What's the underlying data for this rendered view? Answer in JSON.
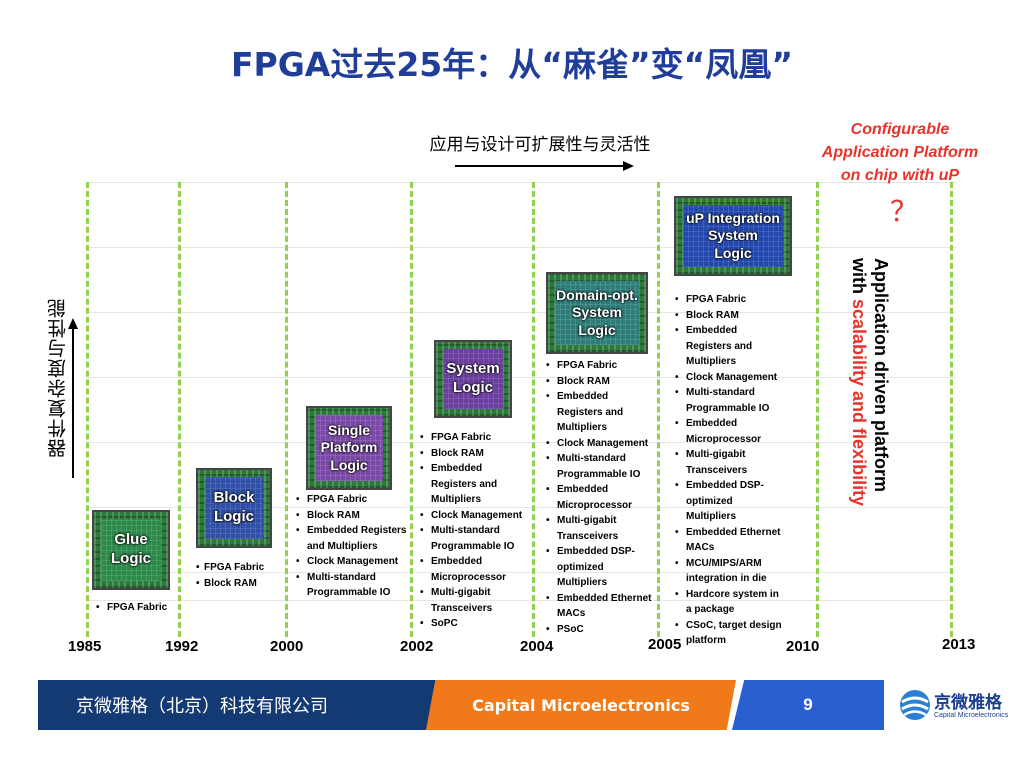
{
  "slide": {
    "title": "FPGA过去25年：从“麻雀”变“凤凰”",
    "top_caption": "应用与设计可扩展性与灵活性",
    "y_axis_label": "器件复杂度与性能",
    "platform_label": [
      "Configurable",
      "Application Platform",
      "on chip with uP"
    ],
    "question_mark": "？",
    "vertical_text_black": "Application driven platform",
    "vertical_text_with": "with ",
    "vertical_text_red": "scalability and flexibility"
  },
  "years": [
    "1985",
    "1992",
    "2000",
    "2002",
    "2004",
    "2005",
    "2010",
    "2013"
  ],
  "chips": [
    {
      "label_lines": [
        "Glue",
        "Logic"
      ],
      "color": "#2c7a3a"
    },
    {
      "label_lines": [
        "Block",
        "Logic"
      ],
      "color": "#2f4fa8"
    },
    {
      "label_lines": [
        "Single",
        "Platform",
        "Logic"
      ],
      "color": "#7b4aa8"
    },
    {
      "label_lines": [
        "System",
        "Logic"
      ],
      "color": "#6b3fa0"
    },
    {
      "label_lines": [
        "Domain-opt.",
        "System",
        "Logic"
      ],
      "color": "#2e7d7a"
    },
    {
      "label_lines": [
        "uP Integration",
        "System",
        "Logic"
      ],
      "color": "#2348b0"
    }
  ],
  "features": [
    [
      "FPGA Fabric"
    ],
    [
      "FPGA Fabric",
      "Block RAM"
    ],
    [
      "FPGA Fabric",
      "Block RAM",
      "Embedded Registers",
      "and Multipliers",
      "Clock Management",
      "Multi-standard",
      "Programmable IO"
    ],
    [
      "FPGA Fabric",
      "Block RAM",
      "Embedded",
      "Registers and",
      "Multipliers",
      "Clock Management",
      "Multi-standard",
      "Programmable IO",
      "Embedded",
      "Microprocessor",
      "Multi-gigabit",
      "Transceivers",
      "SoPC"
    ],
    [
      "FPGA Fabric",
      "Block RAM",
      "Embedded",
      "Registers and",
      "Multipliers",
      "Clock Management",
      "Multi-standard",
      "Programmable IO",
      "Embedded",
      "Microprocessor",
      "Multi-gigabit",
      "Transceivers",
      "Embedded DSP-",
      "optimized",
      "Multipliers",
      "Embedded Ethernet",
      "MACs",
      "PSoC"
    ],
    [
      "FPGA Fabric",
      "Block RAM",
      "Embedded",
      "Registers and",
      "Multipliers",
      "Clock Management",
      "Multi-standard",
      "Programmable IO",
      "Embedded",
      "Microprocessor",
      "Multi-gigabit",
      "Transceivers",
      "Embedded DSP-",
      "optimized",
      "Multipliers",
      "Embedded Ethernet",
      "MACs",
      "MCU/MIPS/ARM",
      "integration in die",
      "Hardcore system in",
      "a package",
      "CSoC, target design",
      "platform"
    ]
  ],
  "footer": {
    "company_cn": "京微雅格（北京）科技有限公司",
    "company_en": "Capital Microelectronics",
    "page_number": "9",
    "logo_name": "京微雅格",
    "logo_sub": "Capital Microelectronics"
  },
  "colors": {
    "title": "#1f3d99",
    "accent_red": "#e8332a",
    "guide_green": "#92d050",
    "footer_navy": "#143a73",
    "footer_orange": "#f07a1a",
    "footer_blue": "#2a5fd0"
  }
}
